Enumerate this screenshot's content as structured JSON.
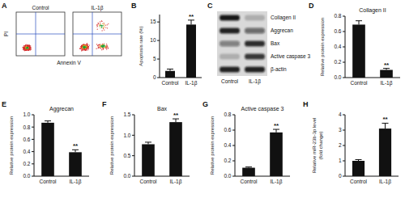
{
  "chart_data": [
    {
      "type": "flow",
      "panel": "A",
      "titles": [
        "Control",
        "IL-1β"
      ],
      "x_label": "Annexin V",
      "y_label": "PI"
    },
    {
      "type": "bar",
      "panel": "B",
      "y_label": "Apoptosis rate (%)",
      "categories": [
        "Control",
        "IL-1β"
      ],
      "values": [
        1.8,
        14.3
      ],
      "errors": [
        0.5,
        1.2
      ],
      "value_annotations": [
        null,
        "**"
      ],
      "color": "#111111",
      "ylim": [
        0,
        17
      ],
      "yticks": [
        0,
        5,
        10,
        15
      ]
    },
    {
      "type": "blot",
      "panel": "C",
      "categories": [
        "Control",
        "IL-1β"
      ],
      "rows": [
        "Collagen II",
        "Aggrecan",
        "Bax",
        "Active caspase 3",
        "β-actin"
      ],
      "band_intensity": [
        [
          0.95,
          0.2
        ],
        [
          0.9,
          0.55
        ],
        [
          0.45,
          0.85
        ],
        [
          0.2,
          0.8
        ],
        [
          0.9,
          0.9
        ]
      ]
    },
    {
      "type": "bar",
      "panel": "D",
      "title": "Collagen II",
      "y_label": "Relative protein expression",
      "categories": [
        "Control",
        "IL-1β"
      ],
      "values": [
        0.69,
        0.1
      ],
      "errors": [
        0.05,
        0.02
      ],
      "value_annotations": [
        null,
        "**"
      ],
      "color": "#111111",
      "ylim": [
        0,
        0.8
      ],
      "yticks": [
        {
          "value": 0,
          "label": "0.0"
        },
        {
          "value": 0.2,
          "label": "0.2"
        },
        {
          "value": 0.4,
          "label": "0.4"
        },
        {
          "value": 0.6,
          "label": "0.6"
        },
        {
          "value": 0.8,
          "label": "0.8"
        }
      ]
    },
    {
      "type": "bar",
      "panel": "E",
      "title": "Aggrecan",
      "y_label": "Relative protein expression",
      "categories": [
        "Control",
        "IL-1β"
      ],
      "values": [
        0.87,
        0.39
      ],
      "errors": [
        0.03,
        0.04
      ],
      "value_annotations": [
        null,
        "**"
      ],
      "color": "#111111",
      "ylim": [
        0,
        1
      ],
      "yticks": [
        {
          "value": 0,
          "label": "0.0"
        },
        {
          "value": 0.2,
          "label": "0.2"
        },
        {
          "value": 0.4,
          "label": "0.4"
        },
        {
          "value": 0.6,
          "label": "0.6"
        },
        {
          "value": 0.8,
          "label": "0.8"
        },
        {
          "value": 1,
          "label": "1.0"
        }
      ]
    },
    {
      "type": "bar",
      "panel": "F",
      "title": "Bax",
      "y_label": "Relative protein expression",
      "categories": [
        "Control",
        "IL-1β"
      ],
      "values": [
        0.78,
        1.32
      ],
      "errors": [
        0.05,
        0.08
      ],
      "value_annotations": [
        null,
        "**"
      ],
      "color": "#111111",
      "ylim": [
        0,
        1.5
      ],
      "yticks": [
        {
          "value": 0,
          "label": "0.0"
        },
        {
          "value": 0.5,
          "label": "0.5"
        },
        {
          "value": 1,
          "label": "1.0"
        },
        {
          "value": 1.5,
          "label": "1.5"
        }
      ]
    },
    {
      "type": "bar",
      "panel": "G",
      "title": "Active caspase 3",
      "y_label": "Relative protein expression",
      "categories": [
        "Control",
        "IL-1β"
      ],
      "values": [
        0.11,
        0.57
      ],
      "errors": [
        0.01,
        0.04
      ],
      "value_annotations": [
        null,
        "**"
      ],
      "color": "#111111",
      "ylim": [
        0,
        0.8
      ],
      "yticks": [
        {
          "value": 0,
          "label": "0.0"
        },
        {
          "value": 0.2,
          "label": "0.2"
        },
        {
          "value": 0.4,
          "label": "0.4"
        },
        {
          "value": 0.6,
          "label": "0.6"
        },
        {
          "value": 0.8,
          "label": "0.8"
        }
      ]
    },
    {
      "type": "bar",
      "panel": "H",
      "y_label": [
        "Relative miR-23b-3p level",
        "(fold change)"
      ],
      "categories": [
        "Control",
        "IL-1β"
      ],
      "values": [
        1.0,
        3.1
      ],
      "errors": [
        0.08,
        0.35
      ],
      "value_annotations": [
        null,
        "**"
      ],
      "color": "#111111",
      "ylim": [
        0,
        4
      ],
      "yticks": [
        0,
        1,
        2,
        3,
        4
      ]
    }
  ]
}
